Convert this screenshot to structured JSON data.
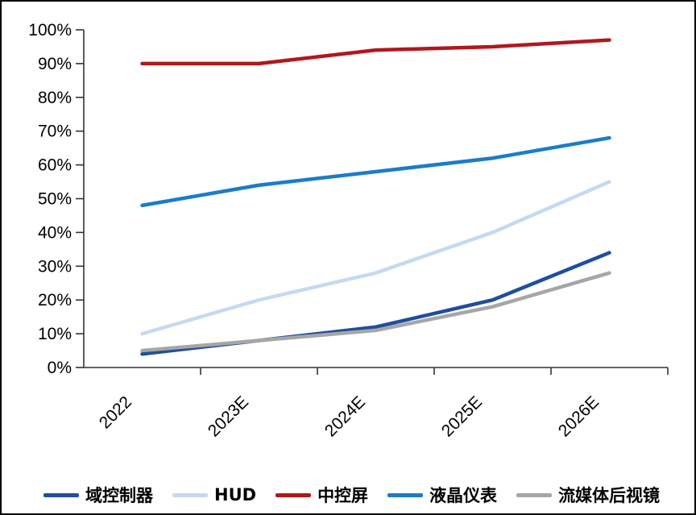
{
  "chart_data": {
    "type": "line",
    "title": "",
    "xlabel": "",
    "ylabel": "",
    "categories": [
      "2022",
      "2023E",
      "2024E",
      "2025E",
      "2026E"
    ],
    "series": [
      {
        "name": "域控制器",
        "color": "#1F4E9C",
        "values": [
          4,
          8,
          12,
          20,
          34
        ]
      },
      {
        "name": "HUD",
        "color": "#C6D9F1",
        "values": [
          10,
          20,
          28,
          40,
          55
        ]
      },
      {
        "name": "中控屏",
        "color": "#B0181D",
        "values": [
          90,
          90,
          94,
          95,
          97
        ]
      },
      {
        "name": "液晶仪表",
        "color": "#1C7CC8",
        "values": [
          48,
          54,
          58,
          62,
          68
        ]
      },
      {
        "name": "流媒体后视镜",
        "color": "#A6A6A6",
        "values": [
          5,
          8,
          11,
          18,
          28
        ]
      }
    ],
    "ylim": [
      0,
      100
    ],
    "y_tick_step": 10,
    "y_tick_labels": [
      "0%",
      "10%",
      "20%",
      "30%",
      "40%",
      "50%",
      "60%",
      "70%",
      "80%",
      "90%",
      "100%"
    ],
    "x_tick_labels": [
      "2022",
      "2023E",
      "2024E",
      "2025E",
      "2026E"
    ],
    "grid": "off",
    "legend_position": "bottom",
    "axis_color": "#333333",
    "text_color": "#000000"
  },
  "legend": {
    "items": [
      "域控制器",
      "HUD",
      "中控屏",
      "液晶仪表",
      "流媒体后视镜"
    ]
  }
}
